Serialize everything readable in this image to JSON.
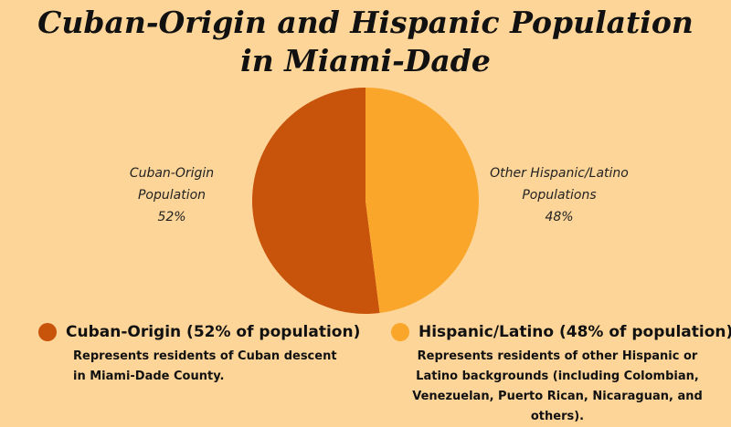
{
  "chart_data": {
    "type": "pie",
    "title": "Cuban-Origin and Hispanic Population in Miami-Dade",
    "categories": [
      "Cuban-Origin Population",
      "Other Hispanic/Latino Populations"
    ],
    "values": [
      52,
      48
    ],
    "value_labels": [
      "52%",
      "48%"
    ],
    "colors": [
      "#c8530a",
      "#f9a62b"
    ],
    "legend": [
      {
        "label": "Cuban-Origin (52% of population)",
        "description": "Represents residents of Cuban descent in Miami-Dade County."
      },
      {
        "label": "Hispanic/Latino (48% of population)",
        "description": "Represents residents of other Hispanic or Latino backgrounds (including Colombian, Venezuelan, Puerto Rican, Nicaraguan, and others)."
      }
    ]
  }
}
